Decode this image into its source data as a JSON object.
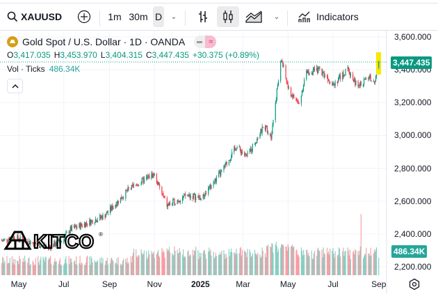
{
  "toolbar": {
    "symbol": "XAUUSD",
    "intervals": [
      "1m",
      "30m",
      "D"
    ],
    "indicators_label": "Indicators",
    "icons": [
      "search-icon",
      "plus-circle-icon",
      "chevron-down-icon",
      "bar-chart-icon",
      "candlestick-icon",
      "area-chart-icon",
      "indicators-icon"
    ]
  },
  "legend": {
    "title": "Gold Spot / U.S. Dollar · 1D · OANDA",
    "o_label": "O",
    "o": "3,417.035",
    "h_label": "H",
    "h": "3,453.970",
    "l_label": "L",
    "l": "3,404.315",
    "c_label": "C",
    "c": "3,447.435",
    "change": "+30.375 (+0.89%)",
    "vol_label": "Vol · Ticks",
    "vol": "486.34K",
    "collapse_icon": "chevron-up-icon"
  },
  "price_axis": {
    "labels": [
      "3,600.000",
      "3,400.000",
      "3,200.000",
      "3,000.000",
      "2,800.000",
      "2,600.000",
      "2,400.000",
      "2,200.000"
    ],
    "last_price": "3,447.435",
    "last_volume": "486.34K"
  },
  "time_axis": {
    "labels": [
      "May",
      "Jul",
      "Sep",
      "Nov",
      "2025",
      "Mar",
      "May",
      "Jul",
      "Sep"
    ]
  },
  "watermark": "KITCO",
  "colors": {
    "up": "#089981",
    "down": "#f23645",
    "highlight": "#f5e900"
  },
  "chart_data": {
    "type": "candlestick",
    "ylim": [
      2200,
      3600
    ],
    "close_path": [
      [
        "2024-04-10",
        2361
      ],
      [
        "2024-04-24",
        2382
      ],
      [
        "2024-05-23",
        2340
      ],
      [
        "2024-06-10",
        2319
      ],
      [
        "2024-06-29",
        2361
      ],
      [
        "2024-07-09",
        2425
      ],
      [
        "2024-08-25",
        2510
      ],
      [
        "2024-09-27",
        2670
      ],
      [
        "2024-10-31",
        2765
      ],
      [
        "2024-11-18",
        2573
      ],
      [
        "2024-12-16",
        2637
      ],
      [
        "2025-01-04",
        2616
      ],
      [
        "2025-02-01",
        2785
      ],
      [
        "2025-02-20",
        2934
      ],
      [
        "2025-03-06",
        2870
      ],
      [
        "2025-03-30",
        3060
      ],
      [
        "2025-04-08",
        2998
      ],
      [
        "2025-04-18",
        3337
      ],
      [
        "2025-04-22",
        3464
      ],
      [
        "2025-05-02",
        3273
      ],
      [
        "2025-05-16",
        3188
      ],
      [
        "2025-05-25",
        3379
      ],
      [
        "2025-06-13",
        3400
      ],
      [
        "2025-07-02",
        3316
      ],
      [
        "2025-07-21",
        3400
      ],
      [
        "2025-08-04",
        3295
      ],
      [
        "2025-08-18",
        3358
      ],
      [
        "2025-08-27",
        3337
      ],
      [
        "2025-09-01",
        3447
      ]
    ],
    "last": {
      "open": 3417.035,
      "high": 3453.97,
      "low": 3404.315,
      "close": 3447.435,
      "volume": "486.34K"
    }
  }
}
